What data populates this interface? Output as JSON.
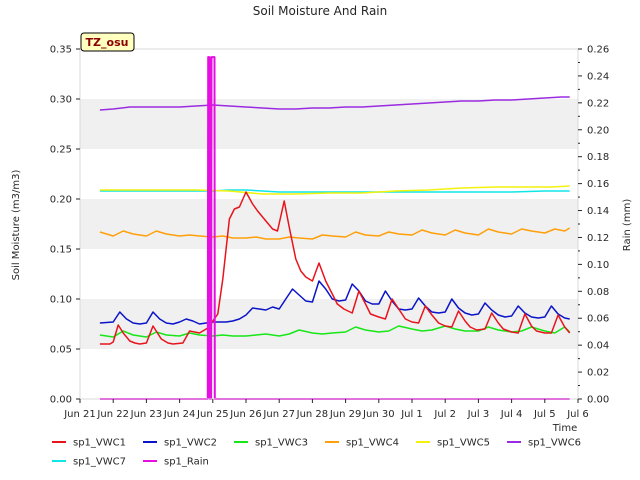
{
  "chart_data": {
    "type": "line",
    "title": "Soil Moisture And Rain",
    "badge": "TZ_osu",
    "xlabel": "Time",
    "ylabel": "Soil Moisture (m3/m3)",
    "y2label": "Rain (mm)",
    "xlim": [
      0,
      15
    ],
    "ylim": [
      0,
      0.35
    ],
    "y2lim": [
      0,
      0.26
    ],
    "x_ticks": [
      {
        "x": 0,
        "label": "Jun 21"
      },
      {
        "x": 1,
        "label": "Jun 22"
      },
      {
        "x": 2,
        "label": "Jun 23"
      },
      {
        "x": 3,
        "label": "Jun 24"
      },
      {
        "x": 4,
        "label": "Jun 25"
      },
      {
        "x": 5,
        "label": "Jun 26"
      },
      {
        "x": 6,
        "label": "Jun 27"
      },
      {
        "x": 7,
        "label": "Jun 28"
      },
      {
        "x": 8,
        "label": "Jun 29"
      },
      {
        "x": 9,
        "label": "Jun 30"
      },
      {
        "x": 10,
        "label": "Jul 1"
      },
      {
        "x": 11,
        "label": "Jul 2"
      },
      {
        "x": 12,
        "label": "Jul 3"
      },
      {
        "x": 13,
        "label": "Jul 4"
      },
      {
        "x": 14,
        "label": "Jul 5"
      },
      {
        "x": 15,
        "label": "Jul 6"
      }
    ],
    "y_ticks": [
      "0.00",
      "0.05",
      "0.10",
      "0.15",
      "0.20",
      "0.25",
      "0.30",
      "0.35"
    ],
    "y2_ticks": [
      "0.00",
      "0.02",
      "0.04",
      "0.06",
      "0.08",
      "0.10",
      "0.12",
      "0.14",
      "0.16",
      "0.18",
      "0.20",
      "0.22",
      "0.24",
      "0.26"
    ],
    "grid_bands": [
      [
        0.05,
        0.1
      ],
      [
        0.15,
        0.2
      ],
      [
        0.25,
        0.3
      ]
    ],
    "legend_position": "bottom",
    "series": [
      {
        "name": "sp1_VWC1",
        "color": "#e8141c",
        "axis": "left",
        "x": [
          0.6,
          0.9,
          1.0,
          1.15,
          1.3,
          1.5,
          1.65,
          1.8,
          2.0,
          2.2,
          2.45,
          2.65,
          2.8,
          3.1,
          3.3,
          3.6,
          3.9,
          4.0,
          4.15,
          4.3,
          4.5,
          4.65,
          4.8,
          5.0,
          5.2,
          5.35,
          5.6,
          5.8,
          5.95,
          6.15,
          6.3,
          6.5,
          6.65,
          6.8,
          7.0,
          7.2,
          7.4,
          7.6,
          7.75,
          7.95,
          8.2,
          8.4,
          8.6,
          8.75,
          9.0,
          9.2,
          9.4,
          9.6,
          9.8,
          10.0,
          10.2,
          10.4,
          10.6,
          10.8,
          11.0,
          11.2,
          11.4,
          11.6,
          11.75,
          11.95,
          12.2,
          12.4,
          12.6,
          12.75,
          13.0,
          13.2,
          13.4,
          13.6,
          13.75,
          14.0,
          14.2,
          14.4,
          14.6,
          14.75
        ],
        "y": [
          0.055,
          0.055,
          0.057,
          0.074,
          0.066,
          0.058,
          0.056,
          0.055,
          0.056,
          0.073,
          0.06,
          0.056,
          0.055,
          0.056,
          0.068,
          0.066,
          0.072,
          0.078,
          0.085,
          0.12,
          0.18,
          0.19,
          0.192,
          0.207,
          0.195,
          0.188,
          0.178,
          0.17,
          0.168,
          0.198,
          0.172,
          0.14,
          0.128,
          0.122,
          0.118,
          0.136,
          0.118,
          0.105,
          0.095,
          0.09,
          0.086,
          0.108,
          0.095,
          0.085,
          0.082,
          0.08,
          0.1,
          0.09,
          0.08,
          0.077,
          0.076,
          0.093,
          0.084,
          0.076,
          0.073,
          0.072,
          0.088,
          0.078,
          0.072,
          0.069,
          0.07,
          0.086,
          0.076,
          0.07,
          0.067,
          0.066,
          0.085,
          0.073,
          0.068,
          0.066,
          0.066,
          0.084,
          0.072,
          0.066
        ]
      },
      {
        "name": "sp1_VWC2",
        "color": "#0a14c8",
        "axis": "left",
        "x": [
          0.6,
          1.0,
          1.2,
          1.4,
          1.6,
          1.8,
          2.0,
          2.2,
          2.4,
          2.6,
          2.8,
          3.0,
          3.2,
          3.4,
          3.6,
          3.8,
          4.0,
          4.2,
          4.4,
          4.6,
          4.8,
          5.0,
          5.2,
          5.4,
          5.6,
          5.8,
          6.0,
          6.2,
          6.4,
          6.6,
          6.8,
          7.0,
          7.2,
          7.4,
          7.6,
          7.8,
          8.0,
          8.2,
          8.4,
          8.6,
          8.8,
          9.0,
          9.2,
          9.4,
          9.6,
          9.8,
          10.0,
          10.2,
          10.4,
          10.6,
          10.8,
          11.0,
          11.2,
          11.4,
          11.6,
          11.8,
          12.0,
          12.2,
          12.4,
          12.6,
          12.8,
          13.0,
          13.2,
          13.4,
          13.6,
          13.8,
          14.0,
          14.2,
          14.4,
          14.6,
          14.75
        ],
        "y": [
          0.076,
          0.077,
          0.087,
          0.08,
          0.076,
          0.075,
          0.076,
          0.087,
          0.08,
          0.076,
          0.075,
          0.077,
          0.08,
          0.078,
          0.075,
          0.076,
          0.077,
          0.077,
          0.077,
          0.078,
          0.08,
          0.084,
          0.091,
          0.09,
          0.089,
          0.092,
          0.09,
          0.1,
          0.11,
          0.104,
          0.098,
          0.097,
          0.118,
          0.11,
          0.1,
          0.098,
          0.099,
          0.115,
          0.108,
          0.098,
          0.095,
          0.095,
          0.108,
          0.098,
          0.09,
          0.089,
          0.09,
          0.101,
          0.093,
          0.087,
          0.086,
          0.087,
          0.1,
          0.091,
          0.086,
          0.084,
          0.085,
          0.096,
          0.089,
          0.084,
          0.082,
          0.083,
          0.093,
          0.086,
          0.082,
          0.081,
          0.082,
          0.093,
          0.085,
          0.081,
          0.08
        ]
      },
      {
        "name": "sp1_VWC3",
        "color": "#17e617",
        "axis": "left",
        "x": [
          0.6,
          1.0,
          1.3,
          1.6,
          2.0,
          2.3,
          2.6,
          3.0,
          3.3,
          3.6,
          4.0,
          4.3,
          4.6,
          5.0,
          5.3,
          5.6,
          6.0,
          6.3,
          6.6,
          7.0,
          7.3,
          7.6,
          8.0,
          8.3,
          8.6,
          9.0,
          9.3,
          9.6,
          10.0,
          10.3,
          10.6,
          11.0,
          11.3,
          11.6,
          12.0,
          12.3,
          12.6,
          13.0,
          13.3,
          13.6,
          14.0,
          14.3,
          14.6,
          14.75
        ],
        "y": [
          0.064,
          0.062,
          0.068,
          0.064,
          0.062,
          0.067,
          0.064,
          0.063,
          0.066,
          0.064,
          0.063,
          0.064,
          0.063,
          0.063,
          0.064,
          0.065,
          0.063,
          0.065,
          0.069,
          0.066,
          0.065,
          0.066,
          0.067,
          0.072,
          0.069,
          0.067,
          0.068,
          0.073,
          0.07,
          0.068,
          0.069,
          0.073,
          0.07,
          0.068,
          0.068,
          0.072,
          0.069,
          0.067,
          0.068,
          0.072,
          0.068,
          0.066,
          0.072,
          0.067
        ]
      },
      {
        "name": "sp1_VWC4",
        "color": "#ff9f0a",
        "axis": "left",
        "x": [
          0.6,
          1.0,
          1.3,
          1.6,
          2.0,
          2.3,
          2.6,
          3.0,
          3.3,
          3.6,
          4.0,
          4.3,
          4.6,
          5.0,
          5.3,
          5.6,
          6.0,
          6.3,
          6.6,
          7.0,
          7.3,
          7.6,
          8.0,
          8.3,
          8.6,
          9.0,
          9.3,
          9.6,
          10.0,
          10.3,
          10.6,
          11.0,
          11.3,
          11.6,
          12.0,
          12.3,
          12.6,
          13.0,
          13.3,
          13.6,
          14.0,
          14.3,
          14.6,
          14.75
        ],
        "y": [
          0.167,
          0.163,
          0.168,
          0.165,
          0.163,
          0.168,
          0.165,
          0.163,
          0.164,
          0.163,
          0.162,
          0.163,
          0.161,
          0.161,
          0.162,
          0.16,
          0.16,
          0.162,
          0.161,
          0.16,
          0.164,
          0.163,
          0.162,
          0.167,
          0.164,
          0.163,
          0.167,
          0.165,
          0.164,
          0.169,
          0.166,
          0.164,
          0.169,
          0.166,
          0.164,
          0.17,
          0.167,
          0.165,
          0.17,
          0.168,
          0.166,
          0.17,
          0.168,
          0.171
        ]
      },
      {
        "name": "sp1_VWC5",
        "color": "#f2f20d",
        "axis": "left",
        "x": [
          0.6,
          1.5,
          2.5,
          3.5,
          4.5,
          5.5,
          6.5,
          7.5,
          8.5,
          9.5,
          10.5,
          11.5,
          12.5,
          13.5,
          14.2,
          14.75
        ],
        "y": [
          0.209,
          0.209,
          0.209,
          0.209,
          0.208,
          0.205,
          0.205,
          0.206,
          0.206,
          0.208,
          0.209,
          0.211,
          0.212,
          0.212,
          0.212,
          0.213
        ]
      },
      {
        "name": "sp1_VWC6",
        "color": "#9b2be0",
        "axis": "left",
        "x": [
          0.6,
          1.0,
          1.5,
          2.0,
          2.5,
          3.0,
          3.5,
          4.0,
          4.5,
          5.0,
          5.5,
          6.0,
          6.5,
          7.0,
          7.5,
          8.0,
          8.5,
          9.0,
          9.5,
          10.0,
          10.5,
          11.0,
          11.5,
          12.0,
          12.5,
          13.0,
          13.5,
          14.0,
          14.5,
          14.75
        ],
        "y": [
          0.289,
          0.29,
          0.292,
          0.292,
          0.292,
          0.292,
          0.293,
          0.294,
          0.293,
          0.292,
          0.291,
          0.29,
          0.29,
          0.291,
          0.291,
          0.292,
          0.292,
          0.293,
          0.294,
          0.295,
          0.296,
          0.297,
          0.298,
          0.298,
          0.299,
          0.299,
          0.3,
          0.301,
          0.302,
          0.302
        ]
      },
      {
        "name": "sp1_VWC7",
        "color": "#10e6e6",
        "axis": "left",
        "x": [
          0.6,
          2.0,
          3.5,
          4.0,
          4.5,
          5.0,
          5.5,
          6.0,
          7.0,
          8.0,
          9.0,
          10.0,
          11.0,
          12.0,
          13.0,
          14.0,
          14.75
        ],
        "y": [
          0.208,
          0.208,
          0.208,
          0.208,
          0.209,
          0.209,
          0.208,
          0.207,
          0.207,
          0.207,
          0.207,
          0.207,
          0.207,
          0.207,
          0.207,
          0.208,
          0.208
        ]
      },
      {
        "name": "sp1_Rain",
        "color": "#e60ee0",
        "axis": "right",
        "x": [
          0.6,
          3.85,
          3.86,
          3.9,
          3.91,
          3.95,
          3.96,
          4.05,
          4.06,
          4.1,
          4.11,
          14.75
        ],
        "y": [
          0,
          0,
          0.254,
          0.254,
          0,
          0,
          0.254,
          0.254,
          0,
          0,
          0,
          0
        ]
      }
    ]
  }
}
